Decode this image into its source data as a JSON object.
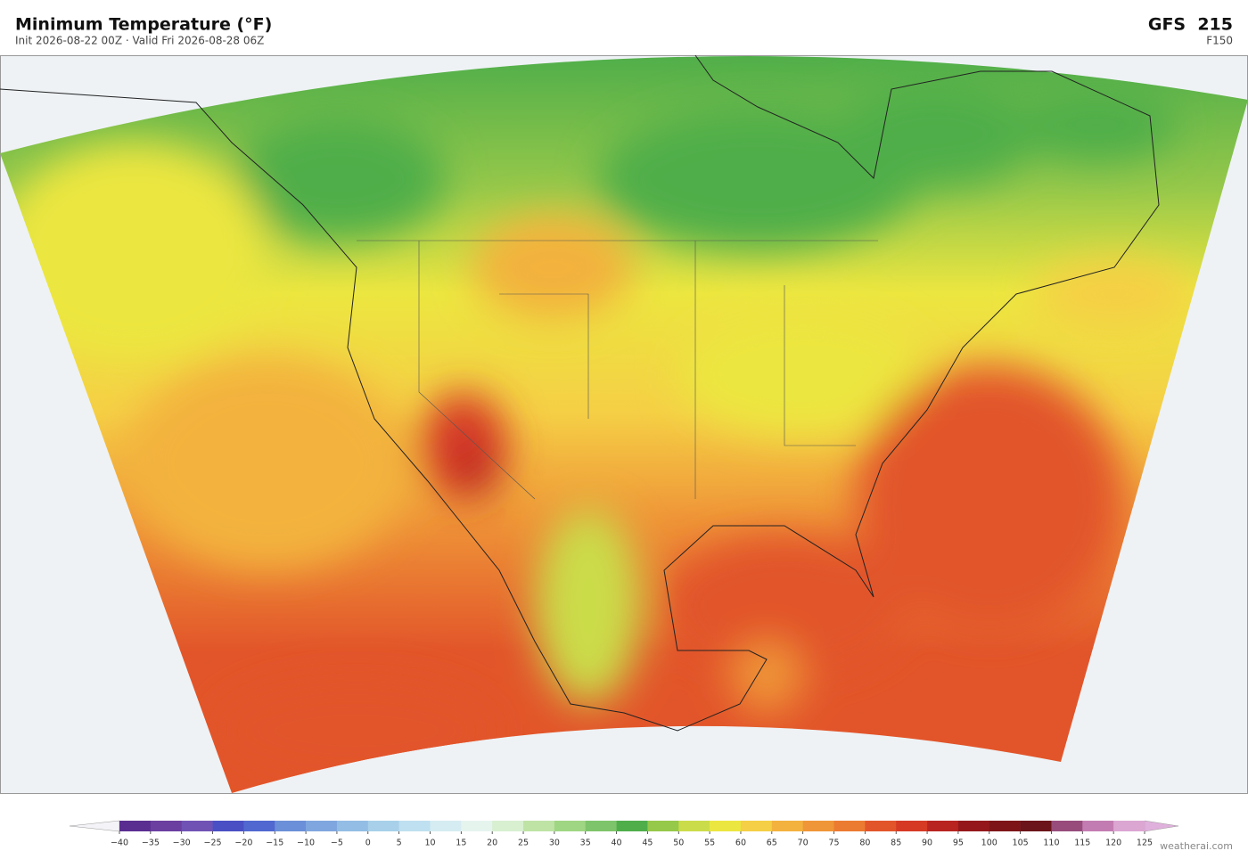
{
  "header": {
    "title": "Minimum Temperature  (°F)",
    "subtitle": "Init 2026-08-22 00Z   ·   Valid Fri 2026-08-28 06Z",
    "model": "GFS  215",
    "forecast_hour": "F150"
  },
  "colorbar": {
    "ticks": [
      {
        "value": -40,
        "label": "−40"
      },
      {
        "value": -35,
        "label": "−35"
      },
      {
        "value": -30,
        "label": "−30"
      },
      {
        "value": -25,
        "label": "−25"
      },
      {
        "value": -20,
        "label": "−20"
      },
      {
        "value": -15,
        "label": "−15"
      },
      {
        "value": -10,
        "label": "−10"
      },
      {
        "value": -5,
        "label": "−5"
      },
      0,
      5,
      10,
      15,
      20,
      25,
      30,
      35,
      40,
      45,
      50,
      55,
      60,
      65,
      70,
      75,
      80,
      85,
      90,
      95,
      100,
      105,
      110,
      115,
      120,
      125
    ],
    "colors": [
      "#5a2d91",
      "#6b3fa0",
      "#7052b5",
      "#4a4fc4",
      "#5068d0",
      "#6b8fd8",
      "#7fa6de",
      "#93bde4",
      "#a8d0ea",
      "#bfe0f0",
      "#d5ecf2",
      "#e6f4ee",
      "#d8efd0",
      "#bfe3a5",
      "#9fd683",
      "#7ec46a",
      "#4fae4a",
      "#96c84a",
      "#cbdc4a",
      "#ece640",
      "#f5cf45",
      "#f3b23e",
      "#ef9638",
      "#ec7b32",
      "#e2552a",
      "#d63a25",
      "#b82420",
      "#94181b",
      "#7d1518",
      "#6b1419",
      "#984c7c",
      "#c37cb2",
      "#dba6d2"
    ],
    "under_color": "#f4f4f8",
    "over_color": "#e0b0dc"
  },
  "footer": {
    "credit": "weatherai.com"
  }
}
